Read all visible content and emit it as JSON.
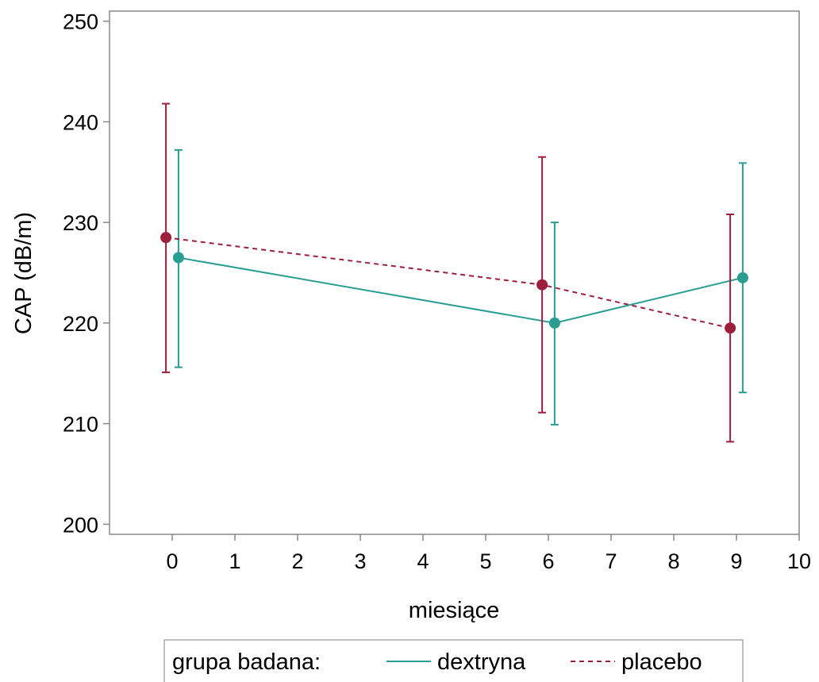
{
  "chart_data": {
    "type": "line",
    "xlabel": "miesiące",
    "ylabel": "CAP (dB/m)",
    "xlim": [
      -1,
      10
    ],
    "ylim": [
      199,
      251
    ],
    "x_ticks": [
      "0",
      "1",
      "2",
      "3",
      "4",
      "5",
      "6",
      "7",
      "8",
      "9",
      "10"
    ],
    "y_ticks": [
      "200",
      "210",
      "220",
      "230",
      "240",
      "250"
    ],
    "grid": false,
    "legend_position": "bottom",
    "legend_title": "grupa badana:",
    "series": [
      {
        "name": "dextryna",
        "color": "#2a9d92",
        "line_style": "solid",
        "points": [
          {
            "x": 0.1,
            "y": 226.5,
            "lower": 215.6,
            "upper": 237.2
          },
          {
            "x": 6.1,
            "y": 220.0,
            "lower": 209.9,
            "upper": 230.0
          },
          {
            "x": 9.1,
            "y": 224.5,
            "lower": 213.1,
            "upper": 235.9
          }
        ]
      },
      {
        "name": "placebo",
        "color": "#9e1f3c",
        "line_style": "dashed",
        "points": [
          {
            "x": -0.1,
            "y": 228.5,
            "lower": 215.1,
            "upper": 241.8
          },
          {
            "x": 5.9,
            "y": 223.8,
            "lower": 211.1,
            "upper": 236.5
          },
          {
            "x": 8.9,
            "y": 219.5,
            "lower": 208.2,
            "upper": 230.8
          }
        ]
      }
    ]
  }
}
